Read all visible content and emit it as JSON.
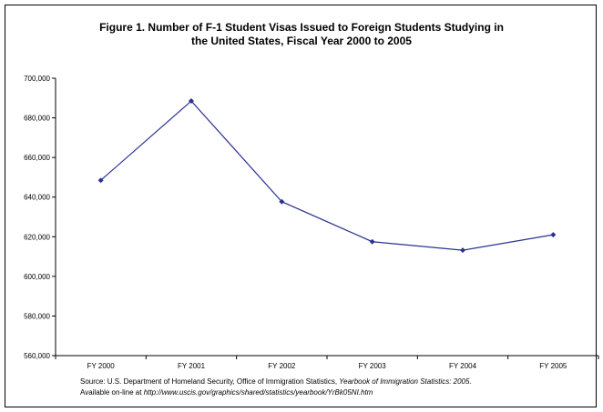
{
  "chart_data": {
    "type": "line",
    "title_line1": "Figure 1. Number of F-1 Student Visas Issued to Foreign Students Studying in",
    "title_line2": "the United States, Fiscal Year 2000 to 2005",
    "categories": [
      "FY 2000",
      "FY 2001",
      "FY 2002",
      "FY 2003",
      "FY 2004",
      "FY 2005"
    ],
    "series": [
      {
        "values": [
          648500,
          688500,
          637700,
          617500,
          613200,
          621000
        ]
      }
    ],
    "ylim": [
      560000,
      700000
    ],
    "yticks": [
      560000,
      580000,
      600000,
      620000,
      640000,
      660000,
      680000,
      700000
    ],
    "ytick_labels": [
      "560,000",
      "580,000",
      "600,000",
      "620,000",
      "640,000",
      "660,000",
      "680,000",
      "700,000"
    ],
    "grid": false,
    "line_color": "#2b3290",
    "source_line1_prefix": "Source: U.S. Department of Homeland Security, Office of Immigration Statistics, ",
    "source_line1_italic": "Yearbook of Immigration Statistics: 2005.",
    "source_line2_prefix": "Available on-line at ",
    "source_line2_italic": "http://www.uscis.gov/graphics/shared/statistics/yearbook/YrBk05NI.htm"
  }
}
